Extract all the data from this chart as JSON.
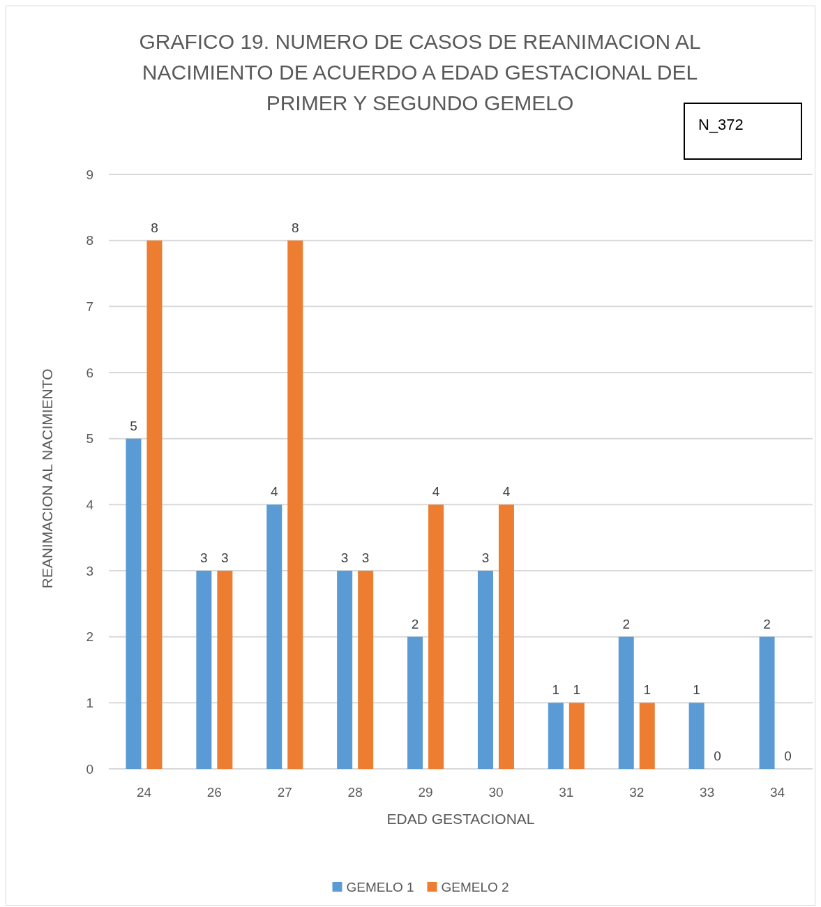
{
  "chart_data": {
    "type": "bar",
    "title": "GRAFICO 19. NUMERO DE CASOS DE REANIMACION AL NACIMIENTO DE ACUERDO A EDAD GESTACIONAL DEL PRIMER Y SEGUNDO GEMELO",
    "xlabel": "EDAD GESTACIONAL",
    "ylabel": "REANIMACION AL NACIMIENTO",
    "annotations": [
      "N_372"
    ],
    "categories": [
      "24",
      "26",
      "27",
      "28",
      "29",
      "30",
      "31",
      "32",
      "33",
      "34"
    ],
    "series": [
      {
        "name": "GEMELO 1",
        "color": "#5b9bd5",
        "values": [
          5,
          3,
          4,
          3,
          2,
          3,
          1,
          2,
          1,
          2
        ]
      },
      {
        "name": "GEMELO 2",
        "color": "#ed7d31",
        "values": [
          8,
          3,
          8,
          3,
          4,
          4,
          1,
          1,
          0,
          0
        ]
      }
    ],
    "ylim": [
      0,
      9
    ],
    "yticks": [
      0,
      1,
      2,
      3,
      4,
      5,
      6,
      7,
      8,
      9
    ],
    "grid": "y",
    "data_labels": true,
    "legend": "bottom"
  }
}
